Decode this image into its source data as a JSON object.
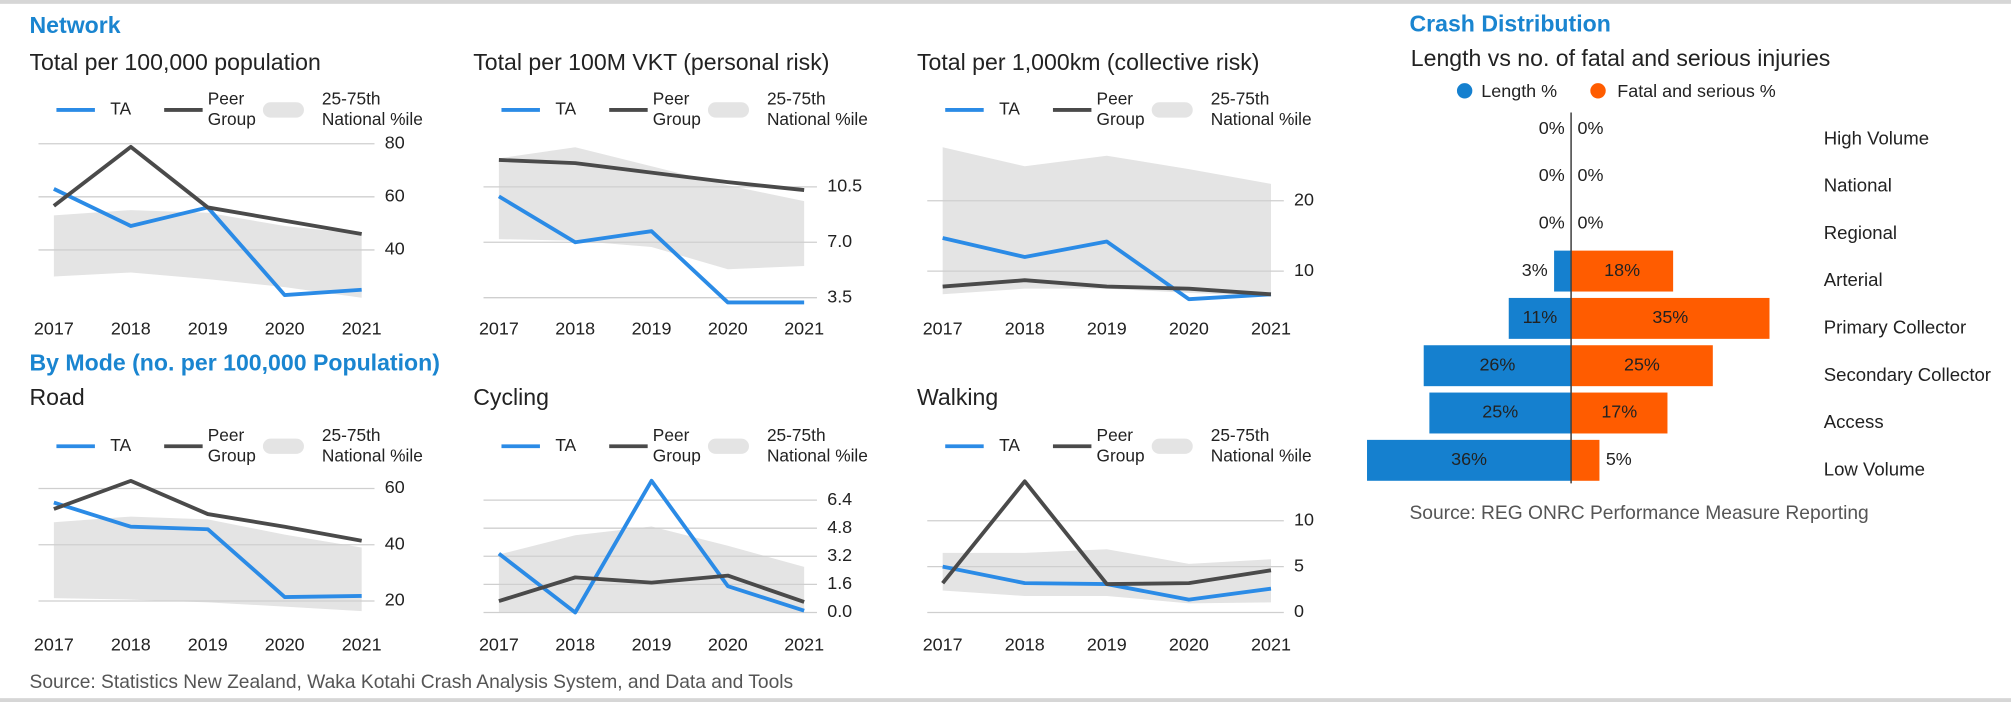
{
  "sections": {
    "network": "Network",
    "by_mode": "By Mode (no. per 100,000 Population)",
    "crash_distribution": "Crash Distribution"
  },
  "sources": {
    "main": "Source: Statistics New Zealand, Waka Kotahi Crash Analysis System, and Data and Tools",
    "crash": "Source: REG ONRC Performance Measure Reporting"
  },
  "chart_data": [
    {
      "type": "line",
      "title": "Total per 100,000 population",
      "x": [
        2017,
        2018,
        2019,
        2020,
        2021
      ],
      "xlim": [
        2017,
        2021
      ],
      "xticks": [
        2017,
        2018,
        2019,
        2020,
        2021
      ],
      "ylim": [
        20,
        85
      ],
      "yticks": [
        40,
        60,
        80
      ],
      "grid": true,
      "series": [
        {
          "name": "TA",
          "color": "#2b8be6",
          "values": [
            63,
            49,
            56,
            23,
            25
          ]
        },
        {
          "name": "Peer Group",
          "color": "#4a4a4a",
          "values": [
            56.6,
            78.8,
            56,
            51,
            46
          ]
        },
        {
          "name": "25-75th National %ile",
          "color": "#e4e4e4",
          "upper": [
            53,
            55,
            54,
            49,
            46
          ],
          "lower": [
            30,
            31.5,
            29,
            26,
            22
          ]
        }
      ]
    },
    {
      "type": "line",
      "title": "Total per 100M VKT (personal risk)",
      "x": [
        2017,
        2018,
        2019,
        2020,
        2021
      ],
      "xlim": [
        2017,
        2021
      ],
      "xticks": [
        2017,
        2018,
        2019,
        2020,
        2021
      ],
      "ylim": [
        3,
        13.5
      ],
      "yticks": [
        3.5,
        {
          "value": 7,
          "label": "7.0"
        },
        10.5
      ],
      "grid": true,
      "series": [
        {
          "name": "TA",
          "color": "#2b8be6",
          "values": [
            9.9,
            7.0,
            7.7,
            3.2,
            3.2
          ]
        },
        {
          "name": "Peer Group",
          "color": "#4a4a4a",
          "values": [
            12.2,
            12.0,
            11.4,
            10.8,
            10.3
          ]
        },
        {
          "name": "25-75th National %ile",
          "color": "#e4e4e4",
          "upper": [
            12.3,
            13.0,
            11.8,
            10.6,
            9.6
          ],
          "lower": [
            7.2,
            7.1,
            6.7,
            5.3,
            5.5
          ]
        }
      ]
    },
    {
      "type": "line",
      "title": "Total per 1,000km (collective risk)",
      "x": [
        2017,
        2018,
        2019,
        2020,
        2021
      ],
      "xlim": [
        2017,
        2021
      ],
      "xticks": [
        2017,
        2018,
        2019,
        2020,
        2021
      ],
      "ylim": [
        5,
        29
      ],
      "yticks": [
        10,
        20
      ],
      "grid": true,
      "series": [
        {
          "name": "TA",
          "color": "#2b8be6",
          "values": [
            14.7,
            12,
            14.2,
            6,
            6.7
          ]
        },
        {
          "name": "Peer Group",
          "color": "#4a4a4a",
          "values": [
            7.8,
            8.7,
            7.8,
            7.5,
            6.7
          ]
        },
        {
          "name": "25-75th National %ile",
          "color": "#e4e4e4",
          "upper": [
            27.6,
            24.9,
            26.4,
            24.5,
            22.4
          ],
          "lower": [
            6.7,
            7.5,
            7.5,
            6.9,
            6.4
          ]
        }
      ]
    },
    {
      "type": "line",
      "title": "Road",
      "x": [
        2017,
        2018,
        2019,
        2020,
        2021
      ],
      "xlim": [
        2017,
        2021
      ],
      "xticks": [
        2017,
        2018,
        2019,
        2020,
        2021
      ],
      "ylim": [
        15,
        70
      ],
      "yticks": [
        20,
        40,
        60
      ],
      "grid": true,
      "series": [
        {
          "name": "TA",
          "color": "#2b8be6",
          "values": [
            55,
            46.4,
            45.5,
            21.4,
            21.8
          ]
        },
        {
          "name": "Peer Group",
          "color": "#4a4a4a",
          "values": [
            52.7,
            62.7,
            50.9,
            46.4,
            41.4
          ]
        },
        {
          "name": "25-75th National %ile",
          "color": "#e4e4e4",
          "upper": [
            48,
            50,
            49,
            43.6,
            39
          ],
          "lower": [
            21,
            20.5,
            19.5,
            18,
            16.4
          ]
        }
      ]
    },
    {
      "type": "line",
      "title": "Cycling",
      "x": [
        2017,
        2018,
        2019,
        2020,
        2021
      ],
      "xlim": [
        2017,
        2021
      ],
      "xticks": [
        2017,
        2018,
        2019,
        2020,
        2021
      ],
      "ylim": [
        0,
        7.5
      ],
      "yticks": [
        {
          "value": 0,
          "label": "0.0"
        },
        1.6,
        3.2,
        4.8,
        6.4
      ],
      "grid": true,
      "series": [
        {
          "name": "TA",
          "color": "#2b8be6",
          "values": [
            3.35,
            0,
            7.5,
            1.5,
            0.1
          ]
        },
        {
          "name": "Peer Group",
          "color": "#4a4a4a",
          "values": [
            0.65,
            2.0,
            1.7,
            2.1,
            0.6
          ]
        },
        {
          "name": "25-75th National %ile",
          "color": "#e4e4e4",
          "upper": [
            3.3,
            4.4,
            4.9,
            3.8,
            2.6
          ],
          "lower": [
            0,
            0,
            0,
            0,
            0
          ]
        }
      ]
    },
    {
      "type": "line",
      "title": "Walking",
      "x": [
        2017,
        2018,
        2019,
        2020,
        2021
      ],
      "xlim": [
        2017,
        2021
      ],
      "xticks": [
        2017,
        2018,
        2019,
        2020,
        2021
      ],
      "ylim": [
        0,
        14.5
      ],
      "yticks": [
        0,
        5,
        10
      ],
      "grid": true,
      "series": [
        {
          "name": "TA",
          "color": "#2b8be6",
          "values": [
            5,
            3.2,
            3.1,
            1.4,
            2.6
          ]
        },
        {
          "name": "Peer Group",
          "color": "#4a4a4a",
          "values": [
            3.2,
            14.3,
            3.1,
            3.2,
            4.6
          ]
        },
        {
          "name": "25-75th National %ile",
          "color": "#e4e4e4",
          "upper": [
            6.5,
            6.5,
            6.9,
            5.3,
            5.8
          ],
          "lower": [
            2.4,
            1.8,
            1.8,
            1,
            1.1
          ]
        }
      ]
    },
    {
      "type": "diverging-bar",
      "title": "Length vs no. of fatal and serious injuries",
      "categories": [
        "High Volume",
        "National",
        "Regional",
        "Arterial",
        "Primary Collector",
        "Secondary Collector",
        "Access",
        "Low Volume"
      ],
      "series": [
        {
          "name": "Length %",
          "color": "#1580cf",
          "values": [
            0,
            0,
            0,
            3,
            11,
            26,
            25,
            36
          ],
          "value_labels": [
            "0%",
            "0%",
            "0%",
            "3%",
            "11%",
            "26%",
            "25%",
            "36%"
          ]
        },
        {
          "name": "Fatal and serious %",
          "color": "#ff5c00",
          "values": [
            0,
            0,
            0,
            18,
            35,
            25,
            17,
            5
          ],
          "value_labels": [
            "0%",
            "0%",
            "0%",
            "18%",
            "35%",
            "25%",
            "17%",
            "5%"
          ]
        }
      ]
    }
  ]
}
